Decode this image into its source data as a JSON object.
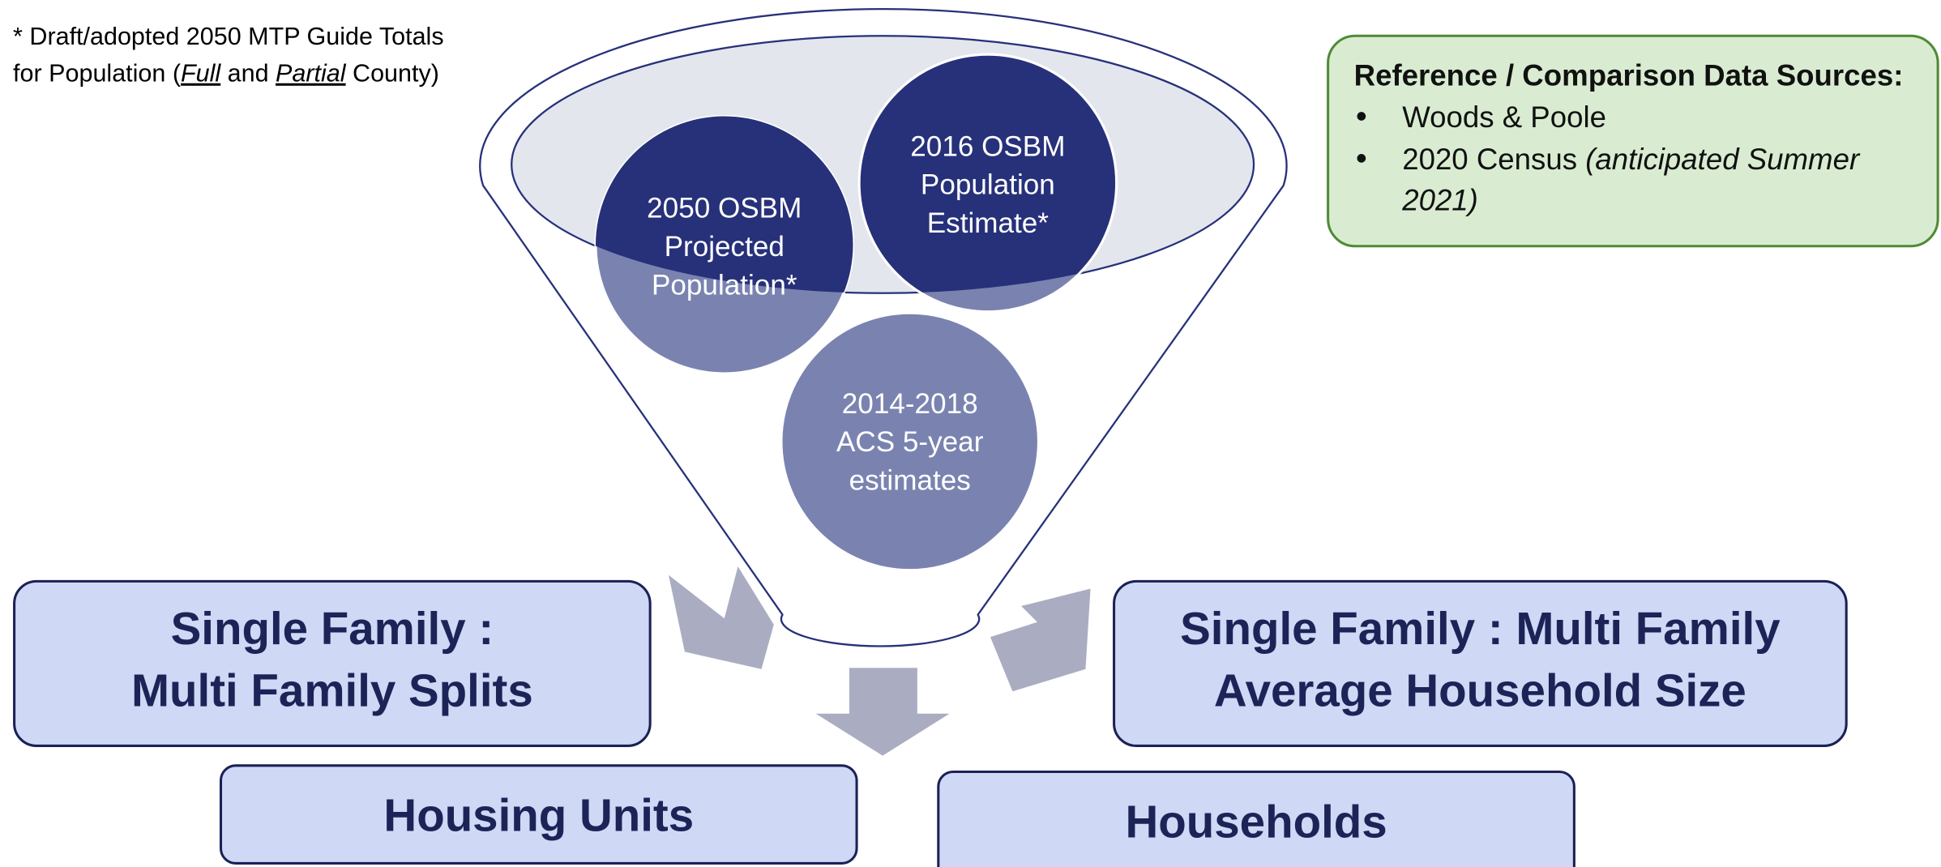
{
  "note": {
    "line1": "* Draft/adopted 2050 MTP Guide Totals",
    "line2": [
      "for Population (",
      "Full",
      " and ",
      "Partial",
      " County)"
    ]
  },
  "circles": [
    {
      "lines": [
        "2050 OSBM",
        "Projected",
        "Population*"
      ]
    },
    {
      "lines": [
        "2016 OSBM",
        "Population",
        "Estimate*"
      ]
    },
    {
      "lines": [
        "2014-2018",
        "ACS 5-year",
        "estimates"
      ]
    }
  ],
  "reference": {
    "title": "Reference / Comparison Data Sources:",
    "items": [
      {
        "lines": [
          "Woods & Poole"
        ]
      },
      {
        "text": "2020 Census",
        "italic": [
          "(anticipated Summer",
          "2021)"
        ]
      }
    ]
  },
  "boxes": [
    {
      "lines": [
        "Single Family :",
        "Multi Family Splits"
      ]
    },
    {
      "lines": [
        "Single Family : Multi Family",
        "Average Household Size"
      ]
    },
    {
      "lines": [
        "Housing Units"
      ]
    },
    {
      "lines": [
        "Households"
      ]
    }
  ]
}
